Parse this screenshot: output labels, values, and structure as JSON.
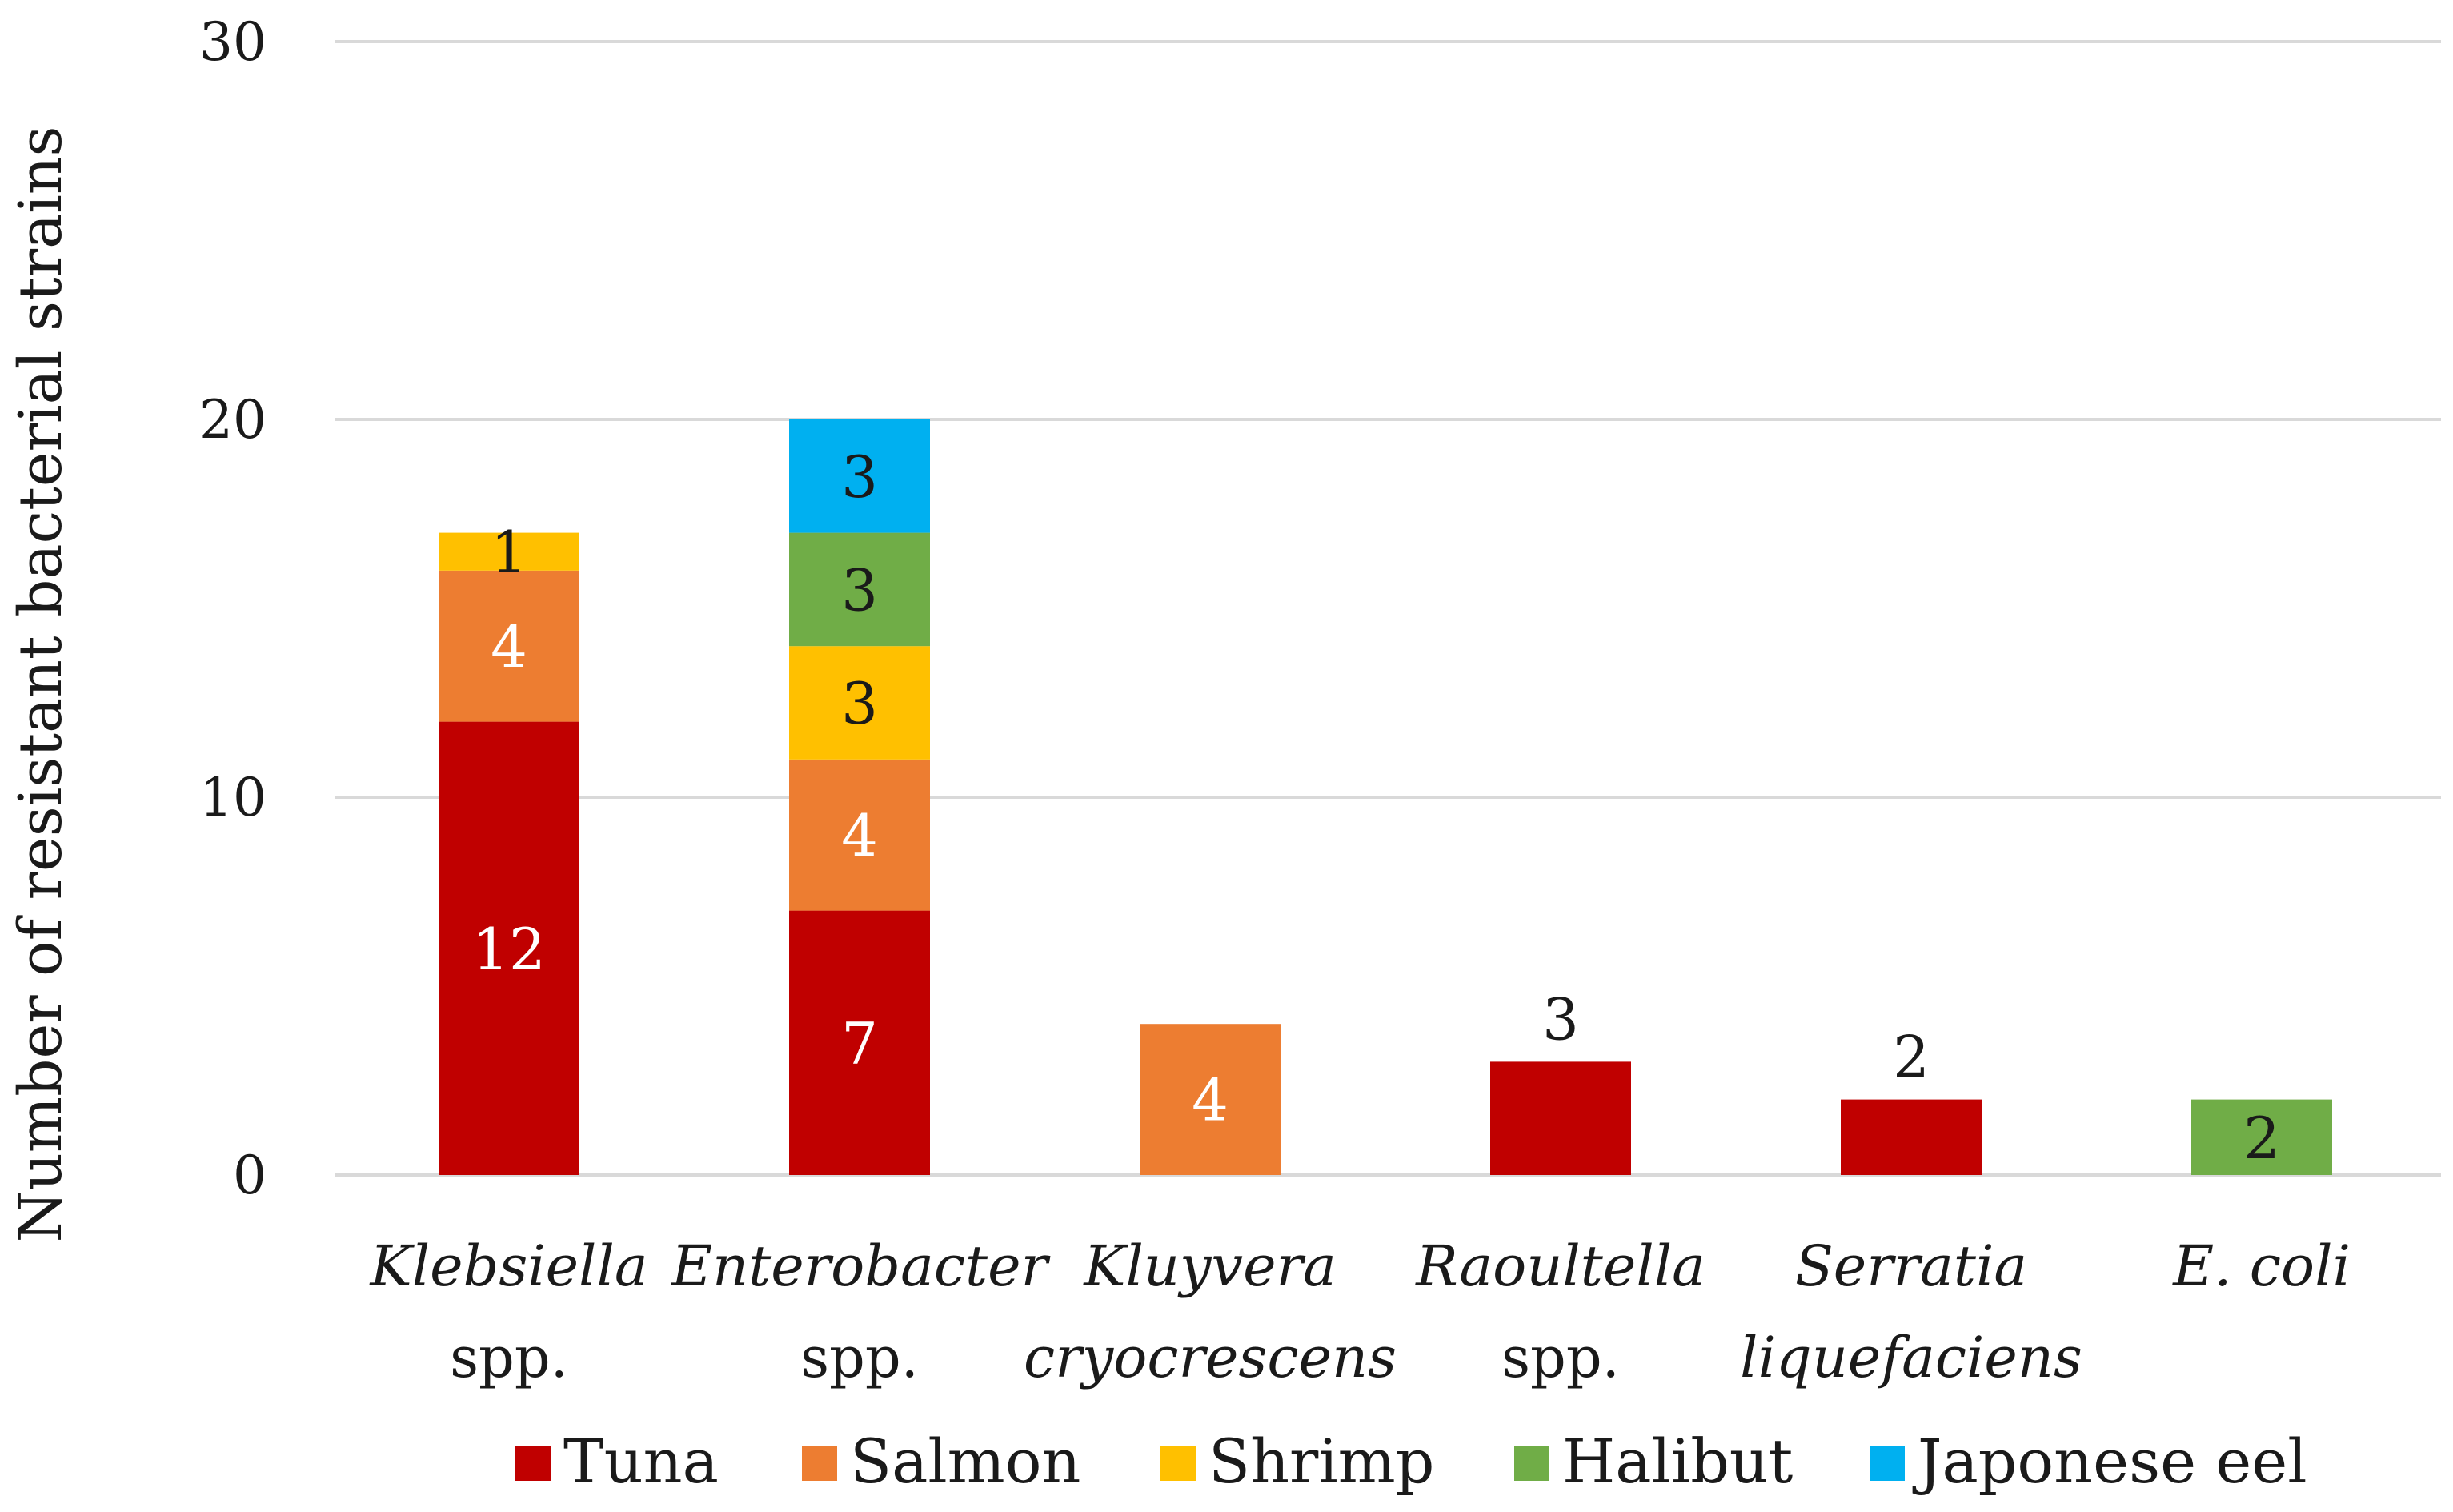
{
  "chart_data": {
    "type": "bar",
    "stacked": true,
    "title": "",
    "xlabel": "",
    "ylabel": "Number of resistant bacterial strains",
    "ylim": [
      0,
      30
    ],
    "yticks": [
      0,
      10,
      20,
      30
    ],
    "grid": true,
    "legend_position": "bottom",
    "categories": [
      {
        "line1": "Klebsiella",
        "line2": "spp.",
        "italic_line2": false
      },
      {
        "line1": "Enterobacter",
        "line2": "spp.",
        "italic_line2": false
      },
      {
        "line1": "Kluyvera",
        "line2": "cryocrescens",
        "italic_line2": true
      },
      {
        "line1": "Raoultella",
        "line2": "spp.",
        "italic_line2": false
      },
      {
        "line1": "Serratia",
        "line2": "liquefaciens",
        "italic_line2": true
      },
      {
        "line1": "E. coli",
        "line2": "",
        "italic_line2": false
      }
    ],
    "series": [
      {
        "name": "Tuna",
        "color": "#C00000",
        "label_color": "#ffffff",
        "values": [
          12,
          7,
          0,
          3,
          2,
          0
        ]
      },
      {
        "name": "Salmon",
        "color": "#ED7D31",
        "label_color": "#ffffff",
        "values": [
          4,
          4,
          4,
          0,
          0,
          0
        ]
      },
      {
        "name": "Shrimp",
        "color": "#FFC000",
        "label_color": "#1a1a1a",
        "values": [
          1,
          3,
          0,
          0,
          0,
          0
        ]
      },
      {
        "name": "Halibut",
        "color": "#70AD47",
        "label_color": "#1a1a1a",
        "values": [
          0,
          3,
          0,
          0,
          0,
          2
        ]
      },
      {
        "name": "Japonese eel",
        "color": "#00B0F0",
        "label_color": "#1a1a1a",
        "values": [
          0,
          3,
          0,
          0,
          0,
          0
        ]
      }
    ],
    "label_outside_single_tuna": true
  }
}
